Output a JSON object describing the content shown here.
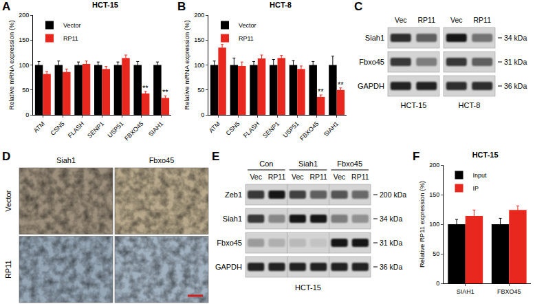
{
  "chart_data": [
    {
      "panel": "A",
      "type": "bar",
      "title": "HCT-15",
      "y_label": "Relative mRNA expression (%)",
      "categories": [
        "ATM",
        "CSN5",
        "FLASH",
        "SENP1",
        "USP51",
        "FBXO45",
        "SIAH1"
      ],
      "series": [
        {
          "name": "Vector",
          "color": "#000000",
          "values": [
            100,
            100,
            100,
            100,
            100,
            100,
            100
          ],
          "errors": [
            7,
            8,
            6,
            6,
            6,
            7,
            6
          ]
        },
        {
          "name": "RP11",
          "color": "#e8281e",
          "values": [
            82,
            86,
            102,
            92,
            114,
            43,
            34
          ],
          "errors": [
            5,
            6,
            6,
            5,
            6,
            4,
            4
          ]
        }
      ],
      "ylim": [
        0,
        200
      ],
      "yticks": [
        0,
        50,
        100,
        150,
        200
      ],
      "grid": false,
      "legend": "top left",
      "annotations": [
        {
          "text": "**",
          "category": "FBXO45",
          "series": "RP11"
        },
        {
          "text": "**",
          "category": "SIAH1",
          "series": "RP11"
        }
      ]
    },
    {
      "panel": "B",
      "type": "bar",
      "title": "HCT-8",
      "y_label": "Relative mRNA expression (%)",
      "categories": [
        "ATM",
        "CSN5",
        "FLASH",
        "SENP1",
        "USP51",
        "FBXO45",
        "SIAH1"
      ],
      "series": [
        {
          "name": "Vector",
          "color": "#000000",
          "values": [
            100,
            100,
            100,
            100,
            100,
            100,
            100
          ],
          "errors": [
            8,
            14,
            7,
            11,
            9,
            7,
            18
          ]
        },
        {
          "name": "RP11",
          "color": "#e8281e",
          "values": [
            135,
            98,
            113,
            114,
            92,
            36,
            50
          ],
          "errors": [
            6,
            8,
            7,
            5,
            6,
            4,
            4
          ]
        }
      ],
      "ylim": [
        0,
        200
      ],
      "yticks": [
        0,
        50,
        100,
        150,
        200
      ],
      "grid": false,
      "legend": "top left",
      "annotations": [
        {
          "text": "**",
          "category": "FBXO45",
          "series": "RP11"
        },
        {
          "text": "**",
          "category": "SIAH1",
          "series": "RP11"
        }
      ]
    },
    {
      "panel": "F",
      "type": "bar",
      "title": "HCT-15",
      "y_label": "Relative RP11 expression (%)",
      "categories": [
        "SIAH1",
        "FBXO45"
      ],
      "series": [
        {
          "name": "Input",
          "color": "#000000",
          "values": [
            100,
            100
          ],
          "errors": [
            8,
            10
          ]
        },
        {
          "name": "IP",
          "color": "#e8281e",
          "values": [
            114,
            124
          ],
          "errors": [
            10,
            7
          ]
        }
      ],
      "ylim": [
        0,
        200
      ],
      "yticks": [
        0,
        50,
        100,
        150,
        200
      ],
      "grid": false,
      "legend": "top left"
    }
  ],
  "blots": [
    {
      "panel": "C",
      "group_position": "bottom",
      "lane_labels": [
        "Vec",
        "RP11",
        "Vec",
        "RP11"
      ],
      "groups": [
        {
          "text": "HCT-15",
          "lanes": 2
        },
        {
          "text": "HCT-8",
          "lanes": 2
        }
      ],
      "rows": [
        {
          "label": "Siah1",
          "size": "34 kDa",
          "signals": [
            0.85,
            0.6,
            0.95,
            0.5
          ]
        },
        {
          "label": "Fbxo45",
          "size": "31 kDa",
          "signals": [
            0.8,
            0.45,
            0.8,
            0.6
          ]
        },
        {
          "label": "GAPDH",
          "size": "36 kDa",
          "signals": [
            0.9,
            0.9,
            0.85,
            0.85
          ]
        }
      ]
    },
    {
      "panel": "E",
      "group_position": "top",
      "caption": "HCT-15",
      "lane_labels": [
        "Vec",
        "RP11",
        "Vec",
        "RP11",
        "Vec",
        "RP11"
      ],
      "groups": [
        {
          "text": "Con",
          "lanes": 2
        },
        {
          "text": "Siah1",
          "lanes": 2
        },
        {
          "text": "Fbxo45",
          "lanes": 2
        }
      ],
      "rows": [
        {
          "label": "Zeb1",
          "size": "200 kDa",
          "signals": [
            0.8,
            0.95,
            0.75,
            0.6,
            0.65,
            0.55
          ]
        },
        {
          "label": "Siah1",
          "size": "34 kDa",
          "signals": [
            0.8,
            0.4,
            0.95,
            0.95,
            0.45,
            0.35
          ]
        },
        {
          "label": "Fbxo45",
          "size": "31 kDa",
          "signals": [
            0.3,
            0.2,
            0.15,
            0.1,
            0.95,
            0.95
          ]
        },
        {
          "label": "GAPDH",
          "size": "36 kDa",
          "signals": [
            0.9,
            0.9,
            0.9,
            0.9,
            0.9,
            0.9
          ]
        }
      ]
    }
  ],
  "ihc": {
    "panel": "D",
    "columns": [
      "Siah1",
      "Fbxo45"
    ],
    "rows": [
      {
        "label": "Vector",
        "colors": [
          "#9c8f7c",
          "#b8a98c"
        ]
      },
      {
        "label": "RP11",
        "colors": [
          "#97a7b6",
          "#a3b2c0"
        ]
      }
    ]
  }
}
